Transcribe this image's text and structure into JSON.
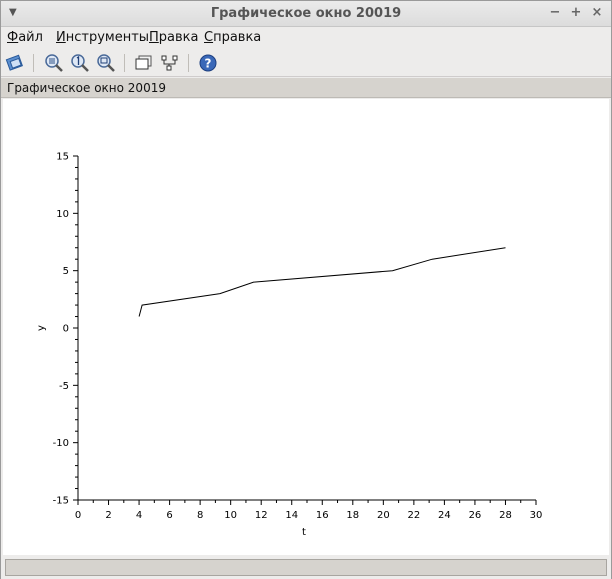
{
  "window": {
    "title": "Графическое окно 20019",
    "controls": {
      "minimize": "−",
      "maximize": "+",
      "close": "×"
    }
  },
  "menubar": {
    "items": [
      {
        "label": "Файл",
        "mnemonic": "Ф",
        "rest": "айл"
      },
      {
        "label": "Инструменты",
        "mnemonic": "И",
        "rest": "нструменты"
      },
      {
        "label": "Правка",
        "mnemonic": "П",
        "rest": "равка"
      },
      {
        "label": "Справка",
        "mnemonic": "С",
        "rest": "правка"
      }
    ]
  },
  "toolbar": {
    "icons": [
      "dock-icon",
      "zoom-grid-icon",
      "zoom-1-icon",
      "zoom-region-icon",
      "datatip-icon",
      "edit-axes-icon",
      "help-icon"
    ]
  },
  "subtitle": {
    "label": "Графическое окно 20019"
  },
  "chart_data": {
    "type": "line",
    "title": "",
    "xlabel": "t",
    "ylabel": "y",
    "xlim": [
      0,
      30
    ],
    "ylim": [
      -15,
      15
    ],
    "xticks": [
      0,
      2,
      4,
      6,
      8,
      10,
      12,
      14,
      16,
      18,
      20,
      22,
      24,
      26,
      28,
      30
    ],
    "yticks": [
      -15,
      -10,
      -5,
      0,
      5,
      10,
      15
    ],
    "grid": false,
    "series": [
      {
        "color": "#000000",
        "x": [
          4.0,
          4.2,
          9.3,
          11.5,
          20.6,
          23.2,
          28.0
        ],
        "y": [
          1.0,
          2.0,
          3.0,
          4.0,
          5.0,
          6.0,
          7.0
        ]
      }
    ]
  }
}
